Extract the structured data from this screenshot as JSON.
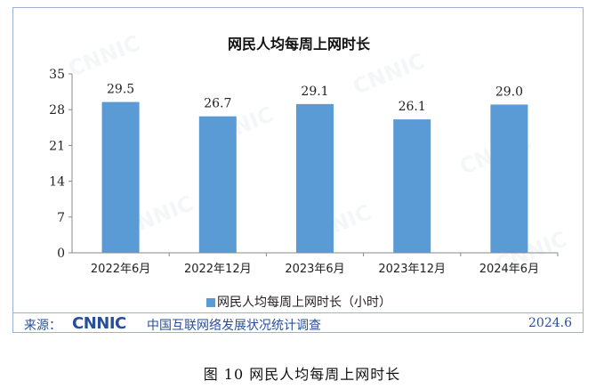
{
  "chart_data": {
    "type": "bar",
    "title": "网民人均每周上网时长",
    "categories": [
      "2022年6月",
      "2022年12月",
      "2023年6月",
      "2023年12月",
      "2024年6月"
    ],
    "series": [
      {
        "name": "网民人均每周上网时长（小时）",
        "values": [
          29.5,
          26.7,
          29.1,
          26.1,
          29.0
        ]
      }
    ],
    "value_labels": [
      "29.5",
      "26.7",
      "29.1",
      "26.1",
      "29.0"
    ],
    "ylim": [
      0,
      35
    ],
    "yticks": [
      "0",
      "7",
      "14",
      "21",
      "28",
      "35"
    ],
    "legend_position": "bottom",
    "grid": false,
    "bar_color": "#5b9bd5"
  },
  "legend": {
    "label": "网民人均每周上网时长（小时）"
  },
  "source": {
    "label": "来源：",
    "logo_text": "CNNIC",
    "description": "中国互联网络发展状况统计调查",
    "date": "2024.6"
  },
  "caption": "图  10    网民人均每周上网时长"
}
